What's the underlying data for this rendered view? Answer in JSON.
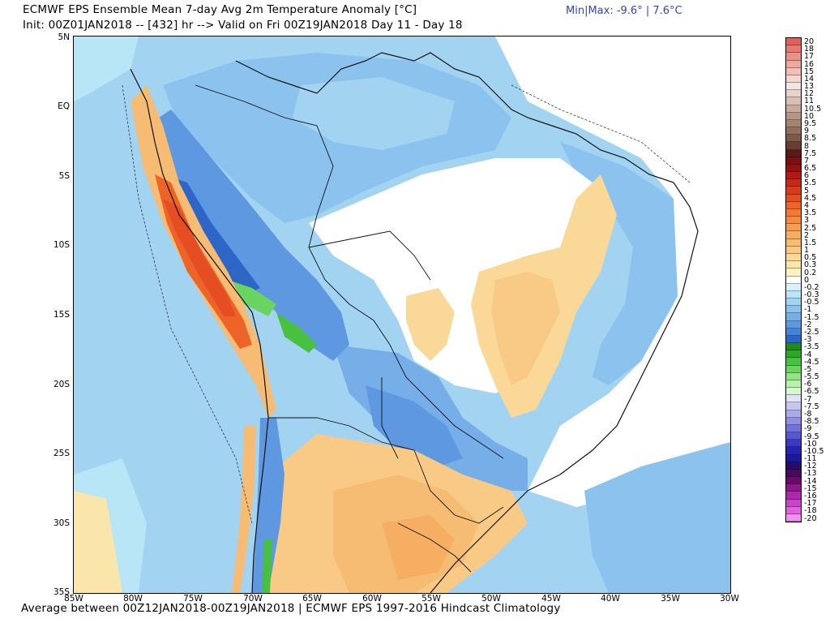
{
  "header": {
    "title": "ECMWF EPS Ensemble Mean 7-day Avg 2m Temperature Anomaly [°C]",
    "subtitle": "Init: 00Z01JAN2018 -- [432] hr --> Valid on Fri 00Z19JAN2018  Day 11 - Day 18",
    "minmax": "Min|Max: -9.6° | 7.6°C"
  },
  "footer": {
    "text": "Average between 00Z12JAN2018-00Z19JAN2018 | ECMWF EPS 1997-2016 Hindcast Climatology"
  },
  "map": {
    "region": "South America",
    "lat_labels": [
      "5N",
      "EQ",
      "5S",
      "10S",
      "15S",
      "20S",
      "25S",
      "30S",
      "35S"
    ],
    "lon_labels": [
      "85W",
      "80W",
      "75W",
      "70W",
      "65W",
      "60W",
      "55W",
      "50W",
      "45W",
      "40W",
      "35W",
      "30W"
    ],
    "lat_range": [
      5,
      -35
    ],
    "lon_range": [
      -85,
      -30
    ]
  },
  "legend": {
    "entries": [
      {
        "label": "20",
        "color": "#e2605a"
      },
      {
        "label": "18",
        "color": "#e47a72"
      },
      {
        "label": "17",
        "color": "#e8928a"
      },
      {
        "label": "16",
        "color": "#eda8a0"
      },
      {
        "label": "15",
        "color": "#f2bfb8"
      },
      {
        "label": "14",
        "color": "#f7d6d0"
      },
      {
        "label": "13",
        "color": "#f2e6e2"
      },
      {
        "label": "12",
        "color": "#e6d4cc"
      },
      {
        "label": "11",
        "color": "#d8c0b4"
      },
      {
        "label": "10.5",
        "color": "#c8ab9c"
      },
      {
        "label": "10",
        "color": "#b89686"
      },
      {
        "label": "9.5",
        "color": "#a68270"
      },
      {
        "label": "9",
        "color": "#946e5c"
      },
      {
        "label": "8.5",
        "color": "#7e5848"
      },
      {
        "label": "8",
        "color": "#683e34"
      },
      {
        "label": "7.5",
        "color": "#5a1a1a"
      },
      {
        "label": "7",
        "color": "#7a1010"
      },
      {
        "label": "6.5",
        "color": "#961010"
      },
      {
        "label": "6",
        "color": "#b01a10"
      },
      {
        "label": "5.5",
        "color": "#c62a14"
      },
      {
        "label": "5",
        "color": "#d83a1c"
      },
      {
        "label": "4.5",
        "color": "#e44e22"
      },
      {
        "label": "4",
        "color": "#ee6428"
      },
      {
        "label": "3.5",
        "color": "#f27a32"
      },
      {
        "label": "3",
        "color": "#f48c40"
      },
      {
        "label": "2.5",
        "color": "#f59e50"
      },
      {
        "label": "2",
        "color": "#f6ae62"
      },
      {
        "label": "1.5",
        "color": "#f7bc74"
      },
      {
        "label": "1",
        "color": "#f8ca86"
      },
      {
        "label": "0.5",
        "color": "#f9d898"
      },
      {
        "label": "0.3",
        "color": "#fae6aa"
      },
      {
        "label": "0.2",
        "color": "#fcf2c2"
      },
      {
        "label": "0",
        "color": "#ffffff"
      },
      {
        "label": "-0.2",
        "color": "#d6f2fa"
      },
      {
        "label": "-0.3",
        "color": "#b8e6f6"
      },
      {
        "label": "-0.5",
        "color": "#a2d4f2"
      },
      {
        "label": "-1",
        "color": "#8cc2ee"
      },
      {
        "label": "-1.5",
        "color": "#76aee8"
      },
      {
        "label": "-2",
        "color": "#5e98e0"
      },
      {
        "label": "-2.5",
        "color": "#4682d6"
      },
      {
        "label": "-3",
        "color": "#2e66c8"
      },
      {
        "label": "-3.5",
        "color": "#1e8a1e"
      },
      {
        "label": "-4",
        "color": "#2ea62a"
      },
      {
        "label": "-4.5",
        "color": "#48c040"
      },
      {
        "label": "-5",
        "color": "#6ad460"
      },
      {
        "label": "-5.5",
        "color": "#92e486"
      },
      {
        "label": "-6",
        "color": "#b8f0ae"
      },
      {
        "label": "-6.5",
        "color": "#d6f8d0"
      },
      {
        "label": "-7",
        "color": "#e2e2f6"
      },
      {
        "label": "-7.5",
        "color": "#c6c6f0"
      },
      {
        "label": "-8",
        "color": "#aaaaea"
      },
      {
        "label": "-8.5",
        "color": "#8e8ee2"
      },
      {
        "label": "-9",
        "color": "#7272da"
      },
      {
        "label": "-9.5",
        "color": "#5656d0"
      },
      {
        "label": "-10",
        "color": "#3a3ac4"
      },
      {
        "label": "-10.5",
        "color": "#2424b0"
      },
      {
        "label": "-11",
        "color": "#1a1a96"
      },
      {
        "label": "-12",
        "color": "#2a0a6a"
      },
      {
        "label": "-13",
        "color": "#4a0a5a"
      },
      {
        "label": "-14",
        "color": "#6a0a6a"
      },
      {
        "label": "-15",
        "color": "#8a1a8a"
      },
      {
        "label": "-16",
        "color": "#aa2aaa"
      },
      {
        "label": "-17",
        "color": "#c844c8"
      },
      {
        "label": "-18",
        "color": "#e060e0"
      },
      {
        "label": "-20",
        "color": "#f090f0"
      }
    ]
  }
}
